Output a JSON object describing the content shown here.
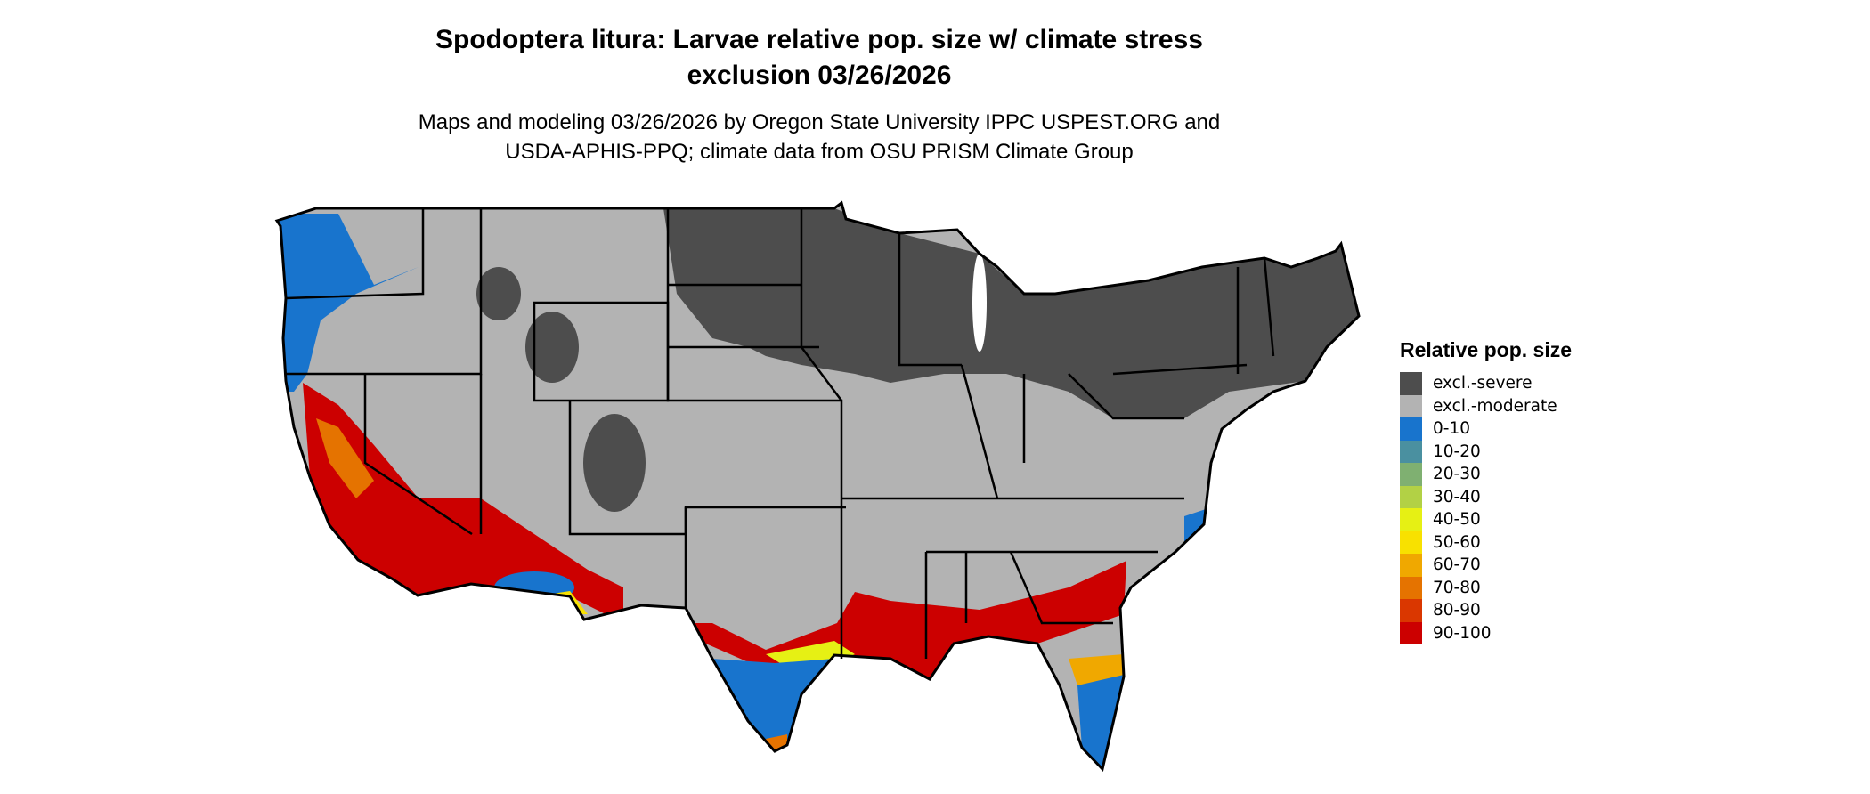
{
  "title": {
    "line1": "Spodoptera litura: Larvae relative pop. size w/ climate stress",
    "line2": "exclusion 03/26/2026"
  },
  "subtitle": {
    "line1": "Maps and modeling 03/26/2026 by Oregon State University IPPC USPEST.ORG and",
    "line2": "USDA-APHIS-PPQ; climate data from OSU PRISM Climate Group"
  },
  "legend": {
    "title": "Relative pop. size",
    "items": [
      {
        "label": "excl.-severe",
        "color": "#4d4d4d"
      },
      {
        "label": "excl.-moderate",
        "color": "#b3b3b3"
      },
      {
        "label": "0-10",
        "color": "#1874cd"
      },
      {
        "label": "10-20",
        "color": "#4a90a0"
      },
      {
        "label": "20-30",
        "color": "#7fb071"
      },
      {
        "label": "30-40",
        "color": "#b2d145"
      },
      {
        "label": "40-50",
        "color": "#e6f014"
      },
      {
        "label": "50-60",
        "color": "#f8e100"
      },
      {
        "label": "60-70",
        "color": "#f0a800"
      },
      {
        "label": "70-80",
        "color": "#e57300"
      },
      {
        "label": "80-90",
        "color": "#da3700"
      },
      {
        "label": "90-100",
        "color": "#cc0000"
      }
    ]
  }
}
